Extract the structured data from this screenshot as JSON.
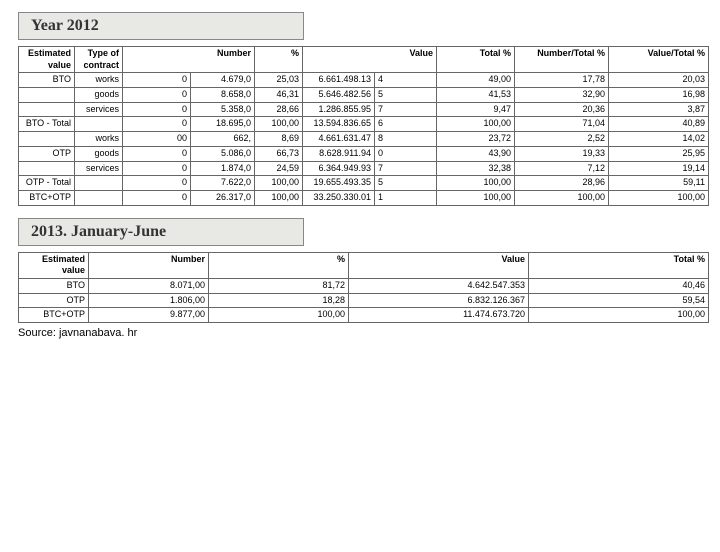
{
  "titles": {
    "year2012": "Year 2012",
    "jan_jun": "2013. January-June"
  },
  "table1": {
    "headers": {
      "estimated_value": "Estimated value",
      "type_of_contract": "Type of contract",
      "number": "Number",
      "pct": "%",
      "value": "Value",
      "total_pct": "Total %",
      "number_total_pct": "Number/Total %",
      "value_total_pct": "Value/Total %"
    },
    "rows": [
      {
        "ev": "BTO",
        "tc": "works",
        "num": "0",
        "np": "4.679,0",
        "pct": "25,03",
        "vp": "6.661.498.13",
        "val": "4",
        "tp": "49,00",
        "nt": "17,78",
        "vt": "20,03"
      },
      {
        "ev": "",
        "tc": "goods",
        "num": "0",
        "np": "8.658,0",
        "pct": "46,31",
        "vp": "5.646.482.56",
        "val": "5",
        "tp": "41,53",
        "nt": "32,90",
        "vt": "16,98"
      },
      {
        "ev": "",
        "tc": "services",
        "num": "0",
        "np": "5.358,0",
        "pct": "28,66",
        "vp": "1.286.855.95",
        "val": "7",
        "tp": "9,47",
        "nt": "20,36",
        "vt": "3,87"
      },
      {
        "ev": "BTO - Total",
        "tc": "",
        "num": "0",
        "np": "18.695,0",
        "pct": "100,00",
        "vp": "13.594.836.65",
        "val": "6",
        "tp": "100,00",
        "nt": "71,04",
        "vt": "40,89"
      },
      {
        "ev": "",
        "tc": "works",
        "num": "00",
        "np": "662,",
        "pct": "8,69",
        "vp": "4.661.631.47",
        "val": "8",
        "tp": "23,72",
        "nt": "2,52",
        "vt": "14,02"
      },
      {
        "ev": "OTP",
        "tc": "goods",
        "num": "0",
        "np": "5.086,0",
        "pct": "66,73",
        "vp": "8.628.911.94",
        "val": "0",
        "tp": "43,90",
        "nt": "19,33",
        "vt": "25,95"
      },
      {
        "ev": "",
        "tc": "services",
        "num": "0",
        "np": "1.874,0",
        "pct": "24,59",
        "vp": "6.364.949.93",
        "val": "7",
        "tp": "32,38",
        "nt": "7,12",
        "vt": "19,14"
      },
      {
        "ev": "OTP - Total",
        "tc": "",
        "num": "0",
        "np": "7.622,0",
        "pct": "100,00",
        "vp": "19.655.493.35",
        "val": "5",
        "tp": "100,00",
        "nt": "28,96",
        "vt": "59,11"
      },
      {
        "ev": "BTC+OTP",
        "tc": "",
        "num": "0",
        "np": "26.317,0",
        "pct": "100,00",
        "vp": "33.250.330.01",
        "val": "1",
        "tp": "100,00",
        "nt": "100,00",
        "vt": "100,00"
      }
    ]
  },
  "table2": {
    "headers": {
      "estimated_value": "Estimated value",
      "number": "Number",
      "pct": "%",
      "value": "Value",
      "total_pct": "Total %"
    },
    "rows": [
      {
        "ev": "BTO",
        "num": "8.071,00",
        "pct": "81,72",
        "val": "4.642.547.353",
        "tp": "40,46"
      },
      {
        "ev": "OTP",
        "num": "1.806,00",
        "pct": "18,28",
        "val": "6.832.126.367",
        "tp": "59,54"
      },
      {
        "ev": "BTC+OTP",
        "num": "9.877,00",
        "pct": "100,00",
        "val": "11.474.673.720",
        "tp": "100,00"
      }
    ]
  },
  "source": "Source: javnanabava. hr"
}
